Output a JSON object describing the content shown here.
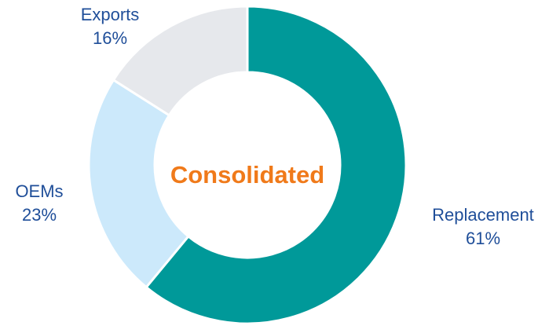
{
  "chart_data": {
    "type": "donut",
    "center_label": "Consolidated",
    "categories": [
      "Replacement",
      "OEMs",
      "Exports"
    ],
    "values": [
      61,
      23,
      16
    ],
    "value_labels": [
      "61%",
      "23%",
      "16%"
    ],
    "colors": [
      "#009999",
      "#cce9fb",
      "#e6e8ec"
    ],
    "label_color": "#1f4e99",
    "center_color": "#f07a1a"
  }
}
